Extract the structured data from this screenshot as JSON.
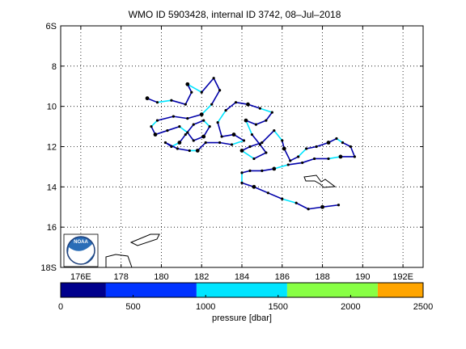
{
  "chart_data": {
    "type": "scatter",
    "title": "WMO ID 5903428, internal ID 3742, 08–Jul–2018",
    "xlim": [
      175,
      193
    ],
    "ylim": [
      18,
      6
    ],
    "y_axis_direction": "south increasing downward",
    "grid": true,
    "x_ticks": [
      {
        "value": 176,
        "label": "176E"
      },
      {
        "value": 178,
        "label": "178"
      },
      {
        "value": 180,
        "label": "180"
      },
      {
        "value": 182,
        "label": "182"
      },
      {
        "value": 184,
        "label": "184"
      },
      {
        "value": 186,
        "label": "186"
      },
      {
        "value": 188,
        "label": "188"
      },
      {
        "value": 190,
        "label": "190"
      },
      {
        "value": 192,
        "label": "192E"
      }
    ],
    "y_ticks": [
      {
        "value": 6,
        "label": "6S"
      },
      {
        "value": 8,
        "label": "8"
      },
      {
        "value": 10,
        "label": "10"
      },
      {
        "value": 12,
        "label": "12"
      },
      {
        "value": 14,
        "label": "14"
      },
      {
        "value": 16,
        "label": "16"
      },
      {
        "value": 18,
        "label": "18S"
      }
    ],
    "trajectory": [
      [
        179.3,
        9.6
      ],
      [
        179.8,
        9.8
      ],
      [
        180.5,
        9.7
      ],
      [
        181.2,
        9.9
      ],
      [
        181.5,
        9.3
      ],
      [
        181.3,
        8.9
      ],
      [
        182.0,
        9.3
      ],
      [
        182.6,
        8.6
      ],
      [
        182.9,
        9.2
      ],
      [
        182.5,
        9.9
      ],
      [
        182.0,
        10.4
      ],
      [
        181.3,
        10.6
      ],
      [
        180.6,
        10.5
      ],
      [
        179.8,
        10.7
      ],
      [
        179.5,
        11.0
      ],
      [
        179.7,
        11.4
      ],
      [
        180.3,
        11.2
      ],
      [
        180.9,
        11.0
      ],
      [
        181.3,
        11.3
      ],
      [
        181.6,
        11.7
      ],
      [
        182.1,
        11.5
      ],
      [
        182.4,
        11.0
      ],
      [
        182.1,
        10.7
      ],
      [
        181.6,
        10.9
      ],
      [
        181.2,
        11.4
      ],
      [
        180.9,
        11.8
      ],
      [
        180.5,
        12.0
      ],
      [
        180.2,
        11.8
      ],
      [
        180.8,
        12.1
      ],
      [
        181.4,
        12.2
      ],
      [
        181.8,
        12.2
      ],
      [
        182.2,
        11.8
      ],
      [
        182.9,
        11.8
      ],
      [
        183.5,
        11.9
      ],
      [
        184.1,
        11.7
      ],
      [
        183.6,
        11.4
      ],
      [
        183.0,
        11.5
      ],
      [
        182.8,
        10.8
      ],
      [
        183.2,
        10.2
      ],
      [
        183.7,
        9.8
      ],
      [
        184.3,
        9.9
      ],
      [
        184.9,
        10.1
      ],
      [
        185.5,
        10.3
      ],
      [
        185.2,
        10.7
      ],
      [
        184.7,
        10.9
      ],
      [
        184.2,
        10.7
      ],
      [
        184.5,
        11.4
      ],
      [
        184.9,
        11.9
      ],
      [
        185.2,
        12.3
      ],
      [
        184.6,
        12.6
      ],
      [
        184.0,
        12.2
      ],
      [
        184.4,
        12.0
      ],
      [
        185.0,
        11.8
      ],
      [
        185.6,
        11.2
      ],
      [
        186.0,
        11.7
      ],
      [
        186.1,
        12.1
      ],
      [
        186.4,
        12.7
      ],
      [
        186.8,
        12.5
      ],
      [
        187.2,
        12.1
      ],
      [
        187.7,
        12.0
      ],
      [
        188.3,
        11.8
      ],
      [
        188.7,
        11.6
      ],
      [
        189.0,
        11.8
      ],
      [
        189.4,
        12.0
      ],
      [
        189.6,
        12.5
      ],
      [
        188.9,
        12.5
      ],
      [
        188.3,
        12.6
      ],
      [
        187.6,
        12.6
      ],
      [
        187.0,
        12.8
      ],
      [
        186.3,
        12.9
      ],
      [
        185.6,
        13.1
      ],
      [
        185.0,
        13.2
      ],
      [
        184.4,
        13.2
      ],
      [
        184.0,
        13.3
      ],
      [
        184.0,
        13.8
      ],
      [
        184.6,
        14.0
      ],
      [
        185.3,
        14.3
      ],
      [
        186.0,
        14.6
      ],
      [
        186.7,
        14.8
      ],
      [
        187.3,
        15.1
      ],
      [
        188.0,
        15.0
      ],
      [
        188.8,
        14.9
      ]
    ],
    "colorbar": {
      "label": "pressure [dbar]",
      "ticks": [
        0,
        500,
        1000,
        1500,
        2000,
        2500
      ],
      "range": [
        0,
        2500
      ],
      "bands": [
        {
          "from": 0,
          "to": 312,
          "color": "#00008c"
        },
        {
          "from": 312,
          "to": 937,
          "color": "#0033ff"
        },
        {
          "from": 937,
          "to": 1562,
          "color": "#00e5ff"
        },
        {
          "from": 1562,
          "to": 2187,
          "color": "#88ff44"
        },
        {
          "from": 2187,
          "to": 2500,
          "color": "#ffa500"
        }
      ]
    },
    "colors": {
      "track": "#0000aa",
      "track_highlight": "#00e5ff",
      "dots": "#000000"
    }
  },
  "logo": {
    "text": "NOAA",
    "colors": [
      "#2a6db7",
      "#ffffff"
    ]
  }
}
